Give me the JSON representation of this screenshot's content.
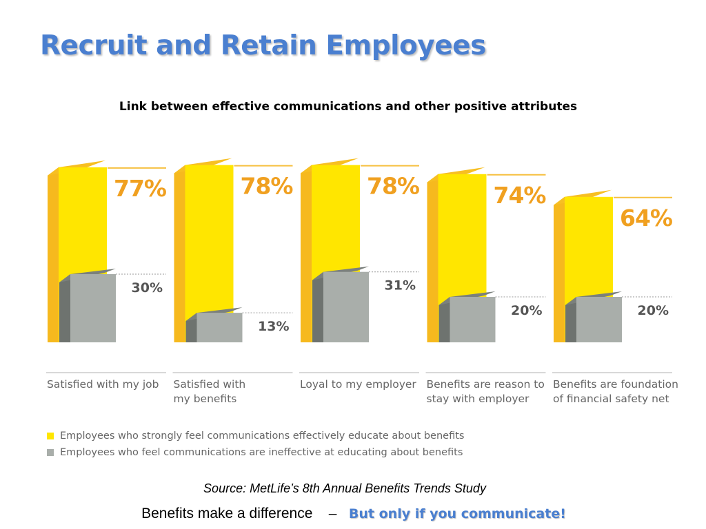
{
  "slide": {
    "title": "Recruit and Retain Employees",
    "source": "Source: MetLife’s 8th Annual Benefits Trends Study",
    "tagline_main": "Benefits make a difference",
    "tagline_separator": "–",
    "tagline_emphasis": "But only if you communicate!",
    "title_color": "#4a7fd0"
  },
  "chart_data": {
    "type": "bar",
    "title": "Link between effective communications and other positive attributes",
    "categories": [
      "Satisfied with my job",
      "Satisfied with my benefits",
      "Loyal to my employer",
      "Benefits are reason to stay with employer",
      "Benefits are foundation of financial safety net"
    ],
    "category_label_lines": [
      [
        "Satisfied with my job"
      ],
      [
        "Satisfied with",
        "my benefits"
      ],
      [
        "Loyal to my employer"
      ],
      [
        "Benefits are reason to",
        "stay with employer"
      ],
      [
        "Benefits are foundation",
        "of financial safety net"
      ]
    ],
    "series": [
      {
        "name": "Employees who strongly feel communications effectively educate about benefits",
        "values": [
          77,
          78,
          78,
          74,
          64
        ],
        "labels": [
          "77%",
          "78%",
          "78%",
          "74%",
          "64%"
        ],
        "color": "#ffe600",
        "label_color": "#f0a020"
      },
      {
        "name": "Employees who feel communications are ineffective at educating about benefits",
        "values": [
          30,
          13,
          31,
          20,
          20
        ],
        "labels": [
          "30%",
          "13%",
          "31%",
          "20%",
          "20%"
        ],
        "color": "#a9aeaa",
        "label_color": "#555555"
      }
    ],
    "unit": "%",
    "ylim": [
      0,
      100
    ],
    "grid": false,
    "style": "3d-overlapping-bars",
    "legend_position": "bottom-left"
  }
}
